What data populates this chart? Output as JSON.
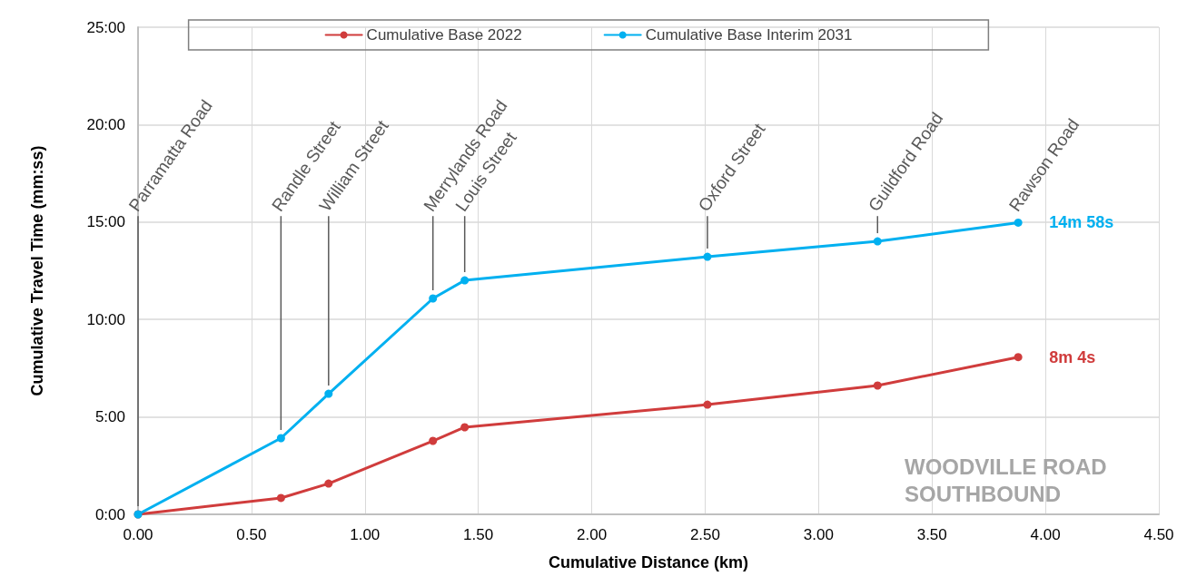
{
  "chart_data": {
    "type": "line",
    "xlabel": "Cumulative Distance (km)",
    "ylabel": "Cumulative Travel Time (mm:ss)",
    "x": [
      0,
      0.63,
      0.84,
      1.3,
      1.44,
      2.51,
      3.26,
      3.88
    ],
    "series": [
      {
        "name": "Cumulative Base 2022",
        "color": "#d03c3c",
        "values": [
          0,
          0.84,
          1.58,
          3.77,
          4.47,
          5.63,
          6.61,
          8.07
        ]
      },
      {
        "name": "Cumulative Base Interim 2031",
        "color": "#00b0f0",
        "values": [
          0,
          3.91,
          6.19,
          11.08,
          12.01,
          13.22,
          14.01,
          14.97
        ]
      }
    ],
    "xlim": [
      0,
      4.5
    ],
    "xticks": [
      {
        "value": 0,
        "label": "0.00"
      },
      {
        "value": 0.5,
        "label": "0.50"
      },
      {
        "value": 1,
        "label": "1.00"
      },
      {
        "value": 1.5,
        "label": "1.50"
      },
      {
        "value": 2,
        "label": "2.00"
      },
      {
        "value": 2.5,
        "label": "2.50"
      },
      {
        "value": 3,
        "label": "3.00"
      },
      {
        "value": 3.5,
        "label": "3.50"
      },
      {
        "value": 4,
        "label": "4.00"
      },
      {
        "value": 4.5,
        "label": "4.50"
      }
    ],
    "ylim": [
      0,
      25
    ],
    "yticks": [
      {
        "value": 0,
        "label": "0:00"
      },
      {
        "value": 5,
        "label": "5:00"
      },
      {
        "value": 10,
        "label": "10:00"
      },
      {
        "value": 15,
        "label": "15:00"
      },
      {
        "value": 20,
        "label": "20:00"
      },
      {
        "value": 25,
        "label": "25:00"
      }
    ],
    "annotations": [
      "Parramatta Road",
      "Randle Street",
      "William Street",
      "Merrylands Road",
      "Louis Street",
      "Oxford Street",
      "Guildford Road",
      "Rawson Road",
      "WOODVILLE ROAD SOUTHBOUND",
      {
        "text": "14m 58s",
        "x": 3.88,
        "y": 14.97
      },
      {
        "text": "8m 4s",
        "x": 3.88,
        "y": 8.07
      }
    ],
    "grid": true,
    "legend": "top",
    "marker": "circle",
    "line_style": "solid"
  }
}
